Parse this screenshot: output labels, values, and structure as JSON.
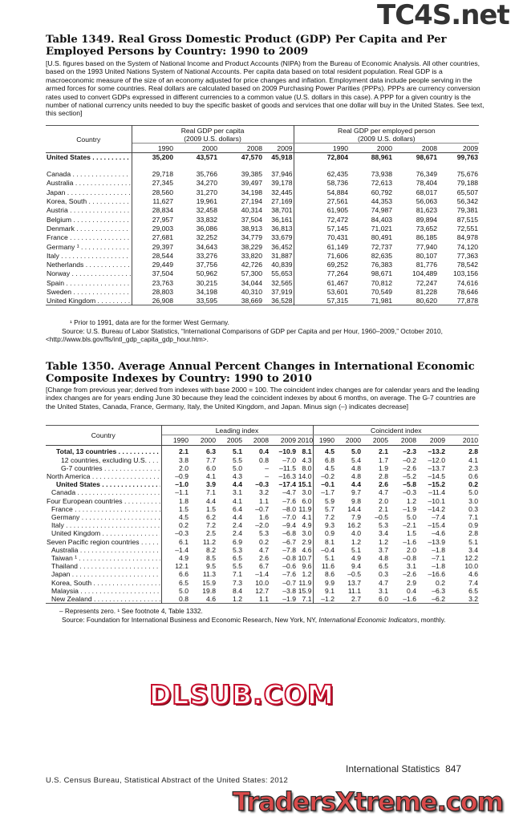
{
  "watermarks": {
    "top": "TC4S.net",
    "middle": "DLSUB.COM",
    "bottom": "TradersXtreme.com"
  },
  "table1349": {
    "title": "Table 1349. Real Gross Domestic Product (GDP) Per Capita and Per Employed Persons by Country: 1990 to 2009",
    "intro": "[U.S. figures based on the System of National Income and Product Accounts (NIPA) from the Bureau of Economic Analysis. All other countries, based on the 1993 United Nations System of National Accounts. Per capita data based on total resident population. Real GDP is a macroeconomic measure of the size of an economy adjusted for price changes and inflation. Employment data include people serving in the armed forces for some countries. Real dollars are calculated based on 2009 Purchasing Power Parities (PPPs). PPPs are currency conversion rates used to convert GDPs expressed in different currencies to a common value (U.S. dollars in this case). A PPP for a given country is the number of national currency units needed to buy the specific basket of goods and services that one dollar will buy in the United States. See text, this section]",
    "country_header": "Country",
    "group1": "Real GDP per capita\n(2009 U.S. dollars)",
    "group2": "Real GDP per employed person\n(2009 U.S. dollars)",
    "years": [
      "1990",
      "2000",
      "2008",
      "2009",
      "1990",
      "2000",
      "2008",
      "2009"
    ],
    "rows": [
      {
        "country": "United States",
        "values": [
          "35,200",
          "43,571",
          "47,570",
          "45,918",
          "72,804",
          "88,961",
          "98,671",
          "99,763"
        ]
      },
      {
        "country": "Canada",
        "values": [
          "29,718",
          "35,766",
          "39,385",
          "37,946",
          "62,435",
          "73,938",
          "76,349",
          "75,676"
        ]
      },
      {
        "country": "Australia",
        "values": [
          "27,345",
          "34,270",
          "39,497",
          "39,178",
          "58,736",
          "72,613",
          "78,404",
          "79,188"
        ]
      },
      {
        "country": "Japan",
        "values": [
          "28,560",
          "31,270",
          "34,198",
          "32,445",
          "54,884",
          "60,792",
          "68,017",
          "65,507"
        ]
      },
      {
        "country": "Korea, South",
        "values": [
          "11,627",
          "19,961",
          "27,194",
          "27,169",
          "27,561",
          "44,353",
          "56,063",
          "56,342"
        ]
      },
      {
        "country": "Austria",
        "values": [
          "28,834",
          "32,458",
          "40,314",
          "38,701",
          "61,905",
          "74,987",
          "81,623",
          "79,381"
        ]
      },
      {
        "country": "Belgium",
        "values": [
          "27,957",
          "33,832",
          "37,504",
          "36,161",
          "72,472",
          "84,403",
          "89,894",
          "87,515"
        ]
      },
      {
        "country": "Denmark",
        "values": [
          "29,003",
          "36,086",
          "38,913",
          "36,813",
          "57,145",
          "71,021",
          "73,652",
          "72,551"
        ]
      },
      {
        "country": "France",
        "values": [
          "27,681",
          "32,252",
          "34,779",
          "33,679",
          "70,431",
          "80,491",
          "86,185",
          "84,978"
        ]
      },
      {
        "country": "Germany ¹",
        "values": [
          "29,397",
          "34,643",
          "38,229",
          "36,452",
          "61,149",
          "72,737",
          "77,940",
          "74,120"
        ]
      },
      {
        "country": "Italy",
        "values": [
          "28,544",
          "33,276",
          "33,820",
          "31,887",
          "71,606",
          "82,635",
          "80,107",
          "77,363"
        ]
      },
      {
        "country": "Netherlands",
        "values": [
          "29,449",
          "37,756",
          "42,726",
          "40,839",
          "69,252",
          "76,383",
          "81,776",
          "78,542"
        ]
      },
      {
        "country": "Norway",
        "values": [
          "37,504",
          "50,962",
          "57,300",
          "55,653",
          "77,264",
          "98,671",
          "104,489",
          "103,156"
        ]
      },
      {
        "country": "Spain",
        "values": [
          "23,763",
          "30,215",
          "34,044",
          "32,565",
          "61,467",
          "70,812",
          "72,247",
          "74,616"
        ]
      },
      {
        "country": "Sweden",
        "values": [
          "28,803",
          "34,198",
          "40,310",
          "37,919",
          "53,601",
          "70,549",
          "81,228",
          "78,646"
        ]
      },
      {
        "country": "United Kingdom",
        "values": [
          "26,908",
          "33,595",
          "38,669",
          "36,528",
          "57,315",
          "71,981",
          "80,620",
          "77,878"
        ]
      }
    ],
    "footnote": "¹ Prior to 1991, data are for the former West Germany.",
    "source": "Source: U.S. Bureau of Labor Statistics, “International Comparisons of GDP per Capita and per Hour, 1960–2009,” October 2010, <http://www.bls.gov/fls/intl_gdp_capita_gdp_hour.htm>."
  },
  "table1350": {
    "title": "Table 1350. Average Annual Percent Changes in International Economic Composite Indexes by Country: 1990 to 2010",
    "intro": "[Change from previous year; derived from indexes with base 2000 = 100. The coincident index changes are for calendar years and the leading index changes are for years ending June 30 because they lead the coincident indexes by about 6 months, on average. The G-7 countries are the United States, Canada, France, Germany, Italy, the United Kingdom, and Japan. Minus sign (–) indicates decrease]",
    "country_header": "Country",
    "group1": "Leading index",
    "group2": "Coincident index",
    "years": [
      "1990",
      "2000",
      "2005",
      "2008",
      "2009",
      "2010",
      "1990",
      "2000",
      "2005",
      "2008",
      "2009",
      "2010"
    ],
    "rows": [
      {
        "country": "Total, 13 countries",
        "values": [
          "2.1",
          "6.3",
          "5.1",
          "0.4",
          "–10.9",
          "8.1",
          "4.5",
          "5.0",
          "2.1",
          "–2.3",
          "–13.2",
          "2.8"
        ]
      },
      {
        "country": "12 countries, excluding U.S.",
        "values": [
          "3.8",
          "7.7",
          "5.5",
          "0.8",
          "–7.0",
          "4.3",
          "6.8",
          "5.4",
          "1.7",
          "–0.2",
          "–12.0",
          "4.1"
        ]
      },
      {
        "country": "G-7 countries",
        "values": [
          "2.0",
          "6.0",
          "5.0",
          "–",
          "–11.5",
          "8.0",
          "4.5",
          "4.8",
          "1.9",
          "–2.6",
          "–13.7",
          "2.3"
        ]
      },
      {
        "country": "North America",
        "values": [
          "–0.9",
          "4.1",
          "4.3",
          "–",
          "–16.3",
          "14.0",
          "–0.2",
          "4.8",
          "2.8",
          "–5.2",
          "–14.5",
          "0.6"
        ]
      },
      {
        "country": "United States",
        "values": [
          "–1.0",
          "3.9",
          "4.4",
          "–0.3",
          "–17.4",
          "15.1",
          "–0.1",
          "4.4",
          "2.6",
          "–5.8",
          "–15.2",
          "0.2"
        ]
      },
      {
        "country": "Canada",
        "values": [
          "–1.1",
          "7.1",
          "3.1",
          "3.2",
          "–4.7",
          "3.0",
          "–1.7",
          "9.7",
          "4.7",
          "–0.3",
          "–11.4",
          "5.0"
        ]
      },
      {
        "country": "Four European countries",
        "values": [
          "1.8",
          "4.4",
          "4.1",
          "1.1",
          "–7.6",
          "6.0",
          "5.9",
          "9.8",
          "2.0",
          "1.2",
          "–10.1",
          "3.0"
        ]
      },
      {
        "country": "France",
        "values": [
          "1.5",
          "1.5",
          "6.4",
          "–0.7",
          "–8.0",
          "11.9",
          "5.7",
          "14.4",
          "2.1",
          "–1.9",
          "–14.2",
          "0.3"
        ]
      },
      {
        "country": "Germany",
        "values": [
          "4.5",
          "6.2",
          "4.4",
          "1.6",
          "–7.0",
          "4.1",
          "7.2",
          "7.9",
          "–0.5",
          "5.0",
          "–7.4",
          "7.1"
        ]
      },
      {
        "country": "Italy",
        "values": [
          "0.2",
          "7.2",
          "2.4",
          "–2.0",
          "–9.4",
          "4.9",
          "9.3",
          "16.2",
          "5.3",
          "–2.1",
          "–15.4",
          "0.9"
        ]
      },
      {
        "country": "United Kingdom",
        "values": [
          "–0.3",
          "2.5",
          "2.4",
          "5.3",
          "–6.8",
          "3.0",
          "0.9",
          "4.0",
          "3.4",
          "1.5",
          "–4.6",
          "2.8"
        ]
      },
      {
        "country": "Seven Pacific region countries",
        "values": [
          "6.1",
          "11.2",
          "6.9",
          "0.2",
          "–6.7",
          "2.9",
          "8.1",
          "1.2",
          "1.2",
          "–1.6",
          "–13.9",
          "5.1"
        ]
      },
      {
        "country": "Australia",
        "values": [
          "–1.4",
          "8.2",
          "5.3",
          "4.7",
          "–7.8",
          "4.6",
          "–0.4",
          "5.1",
          "3.7",
          "2.0",
          "–1.8",
          "3.4"
        ]
      },
      {
        "country": "Taiwan ¹",
        "values": [
          "4.9",
          "8.5",
          "6.5",
          "2.6",
          "–0.8",
          "10.7",
          "5.1",
          "4.9",
          "4.8",
          "–0.8",
          "–7.1",
          "12.2"
        ]
      },
      {
        "country": "Thailand",
        "values": [
          "12.1",
          "9.5",
          "5.5",
          "6.7",
          "–0.6",
          "9.6",
          "11.6",
          "9.4",
          "6.5",
          "3.1",
          "–1.8",
          "10.0"
        ]
      },
      {
        "country": "Japan",
        "values": [
          "6.6",
          "11.3",
          "7.1",
          "–1.4",
          "–7.6",
          "1.2",
          "8.6",
          "–0.5",
          "0.3",
          "–2.6",
          "–16.6",
          "4.6"
        ]
      },
      {
        "country": "Korea, South",
        "values": [
          "6.5",
          "15.9",
          "7.3",
          "10.0",
          "–0.7",
          "11.9",
          "9.9",
          "13.7",
          "4.7",
          "2.9",
          "0.2",
          "7.4"
        ]
      },
      {
        "country": "Malaysia",
        "values": [
          "5.0",
          "19.8",
          "8.4",
          "12.7",
          "–3.8",
          "15.9",
          "9.1",
          "11.1",
          "3.1",
          "0.4",
          "–6.3",
          "6.5"
        ]
      },
      {
        "country": "New Zealand",
        "values": [
          "0.8",
          "4.6",
          "1.2",
          "1.1",
          "–1.9",
          "7.1",
          "–1.2",
          "2.7",
          "6.0",
          "–1.6",
          "–6.2",
          "3.2"
        ]
      }
    ],
    "footnote": "– Represents zero. ¹ See footnote 4, Table 1332.",
    "source_prefix": "Source: Foundation for International Business and Economic Research, New York, NY, ",
    "source_title": "International Economic Indicators",
    "source_suffix": ", monthly."
  },
  "footer": {
    "section": "International Statistics",
    "page": "847",
    "publication": "U.S. Census Bureau, Statistical Abstract of the United States: 2012"
  }
}
